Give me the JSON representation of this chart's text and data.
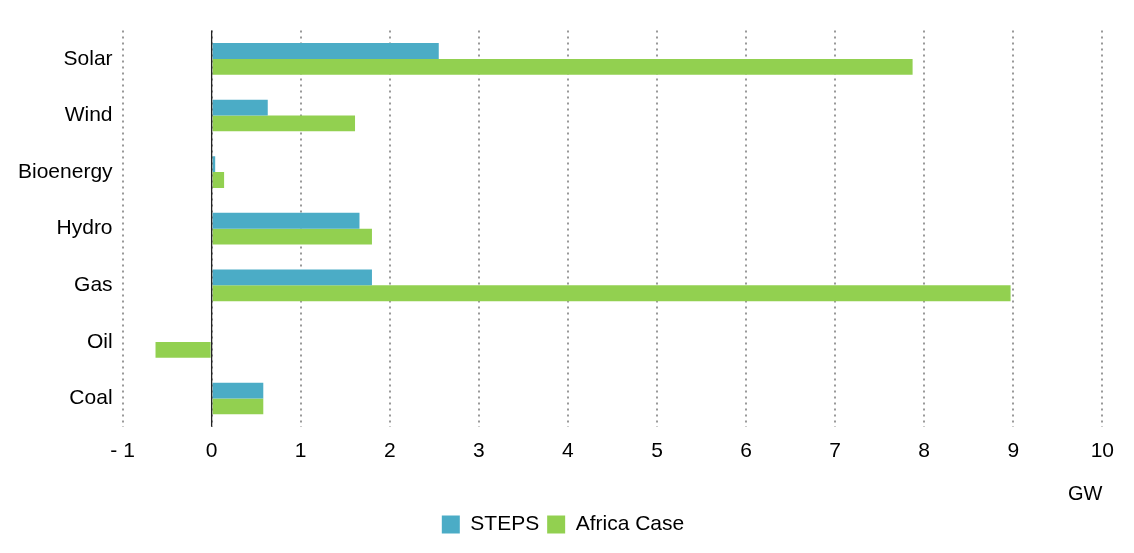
{
  "chart_data": {
    "type": "bar",
    "orientation": "horizontal",
    "categories": [
      "Solar",
      "Wind",
      "Bioenergy",
      "Hydro",
      "Gas",
      "Oil",
      "Coal"
    ],
    "series": [
      {
        "name": "STEPS",
        "color": "#4bacc6",
        "values": [
          2.55,
          0.63,
          0.04,
          1.66,
          1.8,
          null,
          0.58
        ]
      },
      {
        "name": "Africa Case",
        "color": "#92d050",
        "values": [
          7.87,
          1.61,
          0.14,
          1.8,
          8.97,
          -0.63,
          0.58
        ]
      }
    ],
    "xlabel": "GW",
    "xlim": [
      -1,
      10
    ],
    "xticks": [
      {
        "value": -1,
        "label": "- 1"
      },
      0,
      1,
      2,
      3,
      4,
      5,
      6,
      7,
      8,
      9,
      10
    ],
    "grid": "x",
    "legend": "bottom"
  }
}
